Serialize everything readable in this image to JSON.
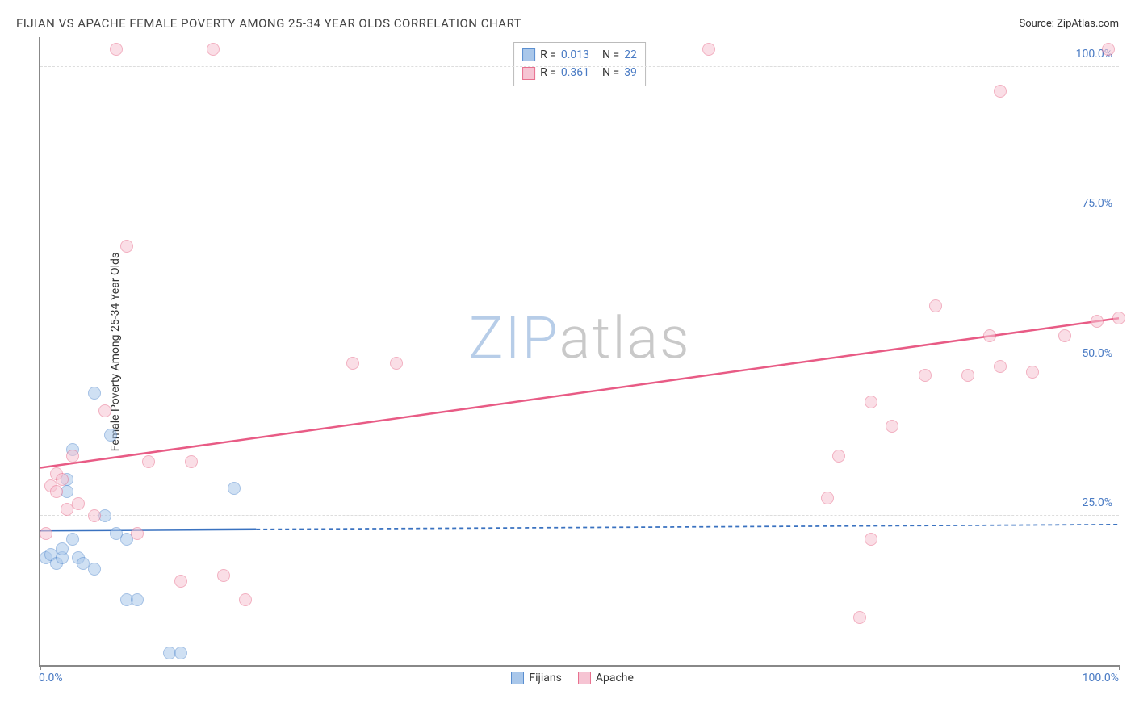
{
  "title": "FIJIAN VS APACHE FEMALE POVERTY AMONG 25-34 YEAR OLDS CORRELATION CHART",
  "source_label": "Source: ZipAtlas.com",
  "yaxis_label": "Female Poverty Among 25-34 Year Olds",
  "watermark": {
    "text_zip": "ZIP",
    "text_atlas": "atlas",
    "color_zip": "#b7cde8",
    "color_atlas": "#c9c9c9"
  },
  "chart": {
    "type": "scatter",
    "xlim": [
      0,
      100
    ],
    "ylim": [
      0,
      105
    ],
    "y_gridlines": [
      25,
      50,
      75,
      100
    ],
    "y_tick_format": ".1f%",
    "x_ticks": [
      0,
      50,
      100
    ],
    "x_tick_labels": [
      "0.0%",
      "",
      "100.0%"
    ],
    "grid_color": "#dddddd",
    "axis_color": "#888888",
    "background": "#ffffff",
    "tick_label_color": "#4a7bc4",
    "point_radius": 8,
    "point_opacity": 0.55,
    "series": [
      {
        "name": "Fijians",
        "fill": "#a9c7ea",
        "stroke": "#5b8fd0",
        "R": "0.013",
        "N": "22",
        "trend": {
          "x1": 0,
          "y1": 22.5,
          "x2": 100,
          "y2": 23.5,
          "solid_until_x": 20,
          "color": "#3a72c0",
          "width": 2.5
        },
        "points": [
          [
            0.5,
            18
          ],
          [
            1,
            18.5
          ],
          [
            1.5,
            17
          ],
          [
            2,
            18
          ],
          [
            2,
            19.5
          ],
          [
            2.5,
            31
          ],
          [
            2.5,
            29
          ],
          [
            3,
            36
          ],
          [
            3,
            21
          ],
          [
            3.5,
            18
          ],
          [
            4,
            17
          ],
          [
            5,
            16
          ],
          [
            5,
            45.5
          ],
          [
            6,
            25
          ],
          [
            6.5,
            38.5
          ],
          [
            7,
            22
          ],
          [
            8,
            21
          ],
          [
            8,
            11
          ],
          [
            9,
            11
          ],
          [
            12,
            2
          ],
          [
            13,
            2
          ],
          [
            18,
            29.5
          ]
        ]
      },
      {
        "name": "Apache",
        "fill": "#f6c4d3",
        "stroke": "#e8718f",
        "R": "0.361",
        "N": "39",
        "trend": {
          "x1": 0,
          "y1": 33,
          "x2": 100,
          "y2": 58,
          "solid_until_x": 100,
          "color": "#e85b85",
          "width": 2.5
        },
        "points": [
          [
            0.5,
            22
          ],
          [
            1,
            30
          ],
          [
            1.5,
            32
          ],
          [
            1.5,
            29
          ],
          [
            2,
            31
          ],
          [
            2.5,
            26
          ],
          [
            3,
            35
          ],
          [
            3.5,
            27
          ],
          [
            5,
            25
          ],
          [
            6,
            42.5
          ],
          [
            7,
            103
          ],
          [
            8,
            70
          ],
          [
            9,
            22
          ],
          [
            10,
            34
          ],
          [
            13,
            14
          ],
          [
            14,
            34
          ],
          [
            16,
            103
          ],
          [
            17,
            15
          ],
          [
            19,
            11
          ],
          [
            29,
            50.5
          ],
          [
            33,
            50.5
          ],
          [
            62,
            103
          ],
          [
            73,
            28
          ],
          [
            74,
            35
          ],
          [
            76,
            8
          ],
          [
            77,
            44
          ],
          [
            77,
            21
          ],
          [
            79,
            40
          ],
          [
            82,
            48.5
          ],
          [
            83,
            60
          ],
          [
            86,
            48.5
          ],
          [
            88,
            55
          ],
          [
            89,
            50
          ],
          [
            89,
            96
          ],
          [
            92,
            49
          ],
          [
            95,
            55
          ],
          [
            98,
            57.5
          ],
          [
            99,
            103
          ],
          [
            100,
            58
          ]
        ]
      }
    ]
  },
  "legend_top": {
    "rows": [
      {
        "series_index": 0,
        "r_label": "R =",
        "n_label": "N ="
      },
      {
        "series_index": 1,
        "r_label": "R =",
        "n_label": "N ="
      }
    ],
    "value_color": "#4a7bc4",
    "label_color": "#333333"
  },
  "legend_bottom": {
    "items": [
      {
        "series_index": 0
      },
      {
        "series_index": 1
      }
    ]
  }
}
